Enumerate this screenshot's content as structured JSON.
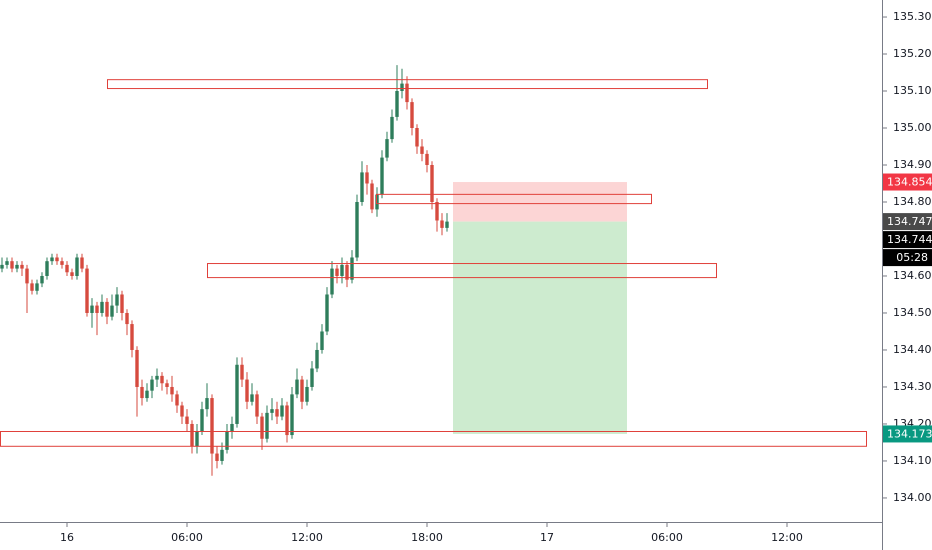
{
  "chart_data": {
    "type": "candlestick",
    "up_color": "#2e7d5b",
    "down_color": "#d64a3e",
    "xlim": [
      -3.35,
      40.75
    ],
    "ylim": [
      133.935,
      135.346
    ],
    "xticks": [
      {
        "value": 0,
        "label": "16"
      },
      {
        "value": 6,
        "label": "06:00"
      },
      {
        "value": 12,
        "label": "12:00"
      },
      {
        "value": 18,
        "label": "18:00"
      },
      {
        "value": 24,
        "label": "17"
      },
      {
        "value": 30,
        "label": "06:00"
      },
      {
        "value": 36,
        "label": "12:00"
      }
    ],
    "yticks": [
      {
        "value": 135.3,
        "label": "135.300"
      },
      {
        "value": 135.2,
        "label": "135.200"
      },
      {
        "value": 135.1,
        "label": "135.100"
      },
      {
        "value": 135.0,
        "label": "135.000"
      },
      {
        "value": 134.9,
        "label": "134.900"
      },
      {
        "value": 134.8,
        "label": "134.800"
      },
      {
        "value": 134.7,
        "label": "134.700"
      },
      {
        "value": 134.6,
        "label": "134.600"
      },
      {
        "value": 134.5,
        "label": "134.500"
      },
      {
        "value": 134.4,
        "label": "134.400"
      },
      {
        "value": 134.3,
        "label": "134.300"
      },
      {
        "value": 134.2,
        "label": "134.200"
      },
      {
        "value": 134.1,
        "label": "134.100"
      },
      {
        "value": 134.0,
        "label": "134.000"
      }
    ],
    "x": [
      -3.25,
      -3,
      -2.75,
      -2.5,
      -2.25,
      -2,
      -1.75,
      -1.5,
      -1.25,
      -1,
      -0.75,
      -0.5,
      -0.25,
      0,
      0.25,
      0.5,
      0.75,
      1,
      1.25,
      1.5,
      1.75,
      2,
      2.25,
      2.5,
      2.75,
      3,
      3.25,
      3.5,
      3.75,
      4,
      4.25,
      4.5,
      4.75,
      5,
      5.25,
      5.5,
      5.75,
      6,
      6.25,
      6.5,
      6.75,
      7,
      7.25,
      7.5,
      7.75,
      8,
      8.25,
      8.5,
      8.75,
      9,
      9.25,
      9.5,
      9.75,
      10,
      10.25,
      10.5,
      10.75,
      11,
      11.25,
      11.5,
      11.75,
      12,
      12.25,
      12.5,
      12.75,
      13,
      13.25,
      13.5,
      13.75,
      14,
      14.25,
      14.5,
      14.75,
      15,
      15.25,
      15.5,
      15.75,
      16,
      16.25,
      16.5,
      16.75,
      17,
      17.25,
      17.5,
      17.75,
      18,
      18.25,
      18.5,
      18.75,
      19
    ],
    "ohlc": [
      [
        134.62,
        134.65,
        134.61,
        134.63
      ],
      [
        134.63,
        134.65,
        134.62,
        134.64
      ],
      [
        134.64,
        134.65,
        134.61,
        134.62
      ],
      [
        134.62,
        134.64,
        134.61,
        134.63
      ],
      [
        134.63,
        134.64,
        134.6,
        134.62
      ],
      [
        134.62,
        134.63,
        134.5,
        134.58
      ],
      [
        134.58,
        134.59,
        134.55,
        134.56
      ],
      [
        134.56,
        134.59,
        134.55,
        134.58
      ],
      [
        134.58,
        134.61,
        134.57,
        134.6
      ],
      [
        134.6,
        134.65,
        134.59,
        134.64
      ],
      [
        134.64,
        134.66,
        134.63,
        134.65
      ],
      [
        134.65,
        134.66,
        134.63,
        134.64
      ],
      [
        134.64,
        134.65,
        134.62,
        134.63
      ],
      [
        134.63,
        134.64,
        134.6,
        134.61
      ],
      [
        134.61,
        134.62,
        134.59,
        134.6
      ],
      [
        134.6,
        134.66,
        134.59,
        134.65
      ],
      [
        134.65,
        134.66,
        134.61,
        134.62
      ],
      [
        134.62,
        134.63,
        134.49,
        134.5
      ],
      [
        134.5,
        134.54,
        134.46,
        134.52
      ],
      [
        134.52,
        134.53,
        134.44,
        134.5
      ],
      [
        134.5,
        134.55,
        134.49,
        134.53
      ],
      [
        134.53,
        134.54,
        134.47,
        134.49
      ],
      [
        134.49,
        134.55,
        134.48,
        134.52
      ],
      [
        134.52,
        134.57,
        134.5,
        134.55
      ],
      [
        134.55,
        134.56,
        134.48,
        134.5
      ],
      [
        134.5,
        134.51,
        134.44,
        134.47
      ],
      [
        134.47,
        134.48,
        134.38,
        134.4
      ],
      [
        134.4,
        134.41,
        134.22,
        134.3
      ],
      [
        134.3,
        134.32,
        134.25,
        134.27
      ],
      [
        134.27,
        134.31,
        134.26,
        134.29
      ],
      [
        134.29,
        134.33,
        134.27,
        134.32
      ],
      [
        134.32,
        134.35,
        134.3,
        134.33
      ],
      [
        134.33,
        134.34,
        134.29,
        134.31
      ],
      [
        134.31,
        134.32,
        134.28,
        134.3
      ],
      [
        134.3,
        134.33,
        134.26,
        134.28
      ],
      [
        134.28,
        134.29,
        134.23,
        134.25
      ],
      [
        134.25,
        134.26,
        134.2,
        134.22
      ],
      [
        134.22,
        134.24,
        134.18,
        134.2
      ],
      [
        134.2,
        134.21,
        134.12,
        134.14
      ],
      [
        134.14,
        134.2,
        134.12,
        134.18
      ],
      [
        134.18,
        134.26,
        134.17,
        134.24
      ],
      [
        134.24,
        134.31,
        134.22,
        134.27
      ],
      [
        134.27,
        134.28,
        134.06,
        134.12
      ],
      [
        134.12,
        134.14,
        134.08,
        134.1
      ],
      [
        134.1,
        134.15,
        134.09,
        134.13
      ],
      [
        134.13,
        134.2,
        134.12,
        134.18
      ],
      [
        134.18,
        134.22,
        134.16,
        134.2
      ],
      [
        134.2,
        134.38,
        134.19,
        134.36
      ],
      [
        134.36,
        134.38,
        134.3,
        134.32
      ],
      [
        134.32,
        134.34,
        134.24,
        134.26
      ],
      [
        134.26,
        134.31,
        134.25,
        134.28
      ],
      [
        134.28,
        134.29,
        134.2,
        134.22
      ],
      [
        134.22,
        134.23,
        134.13,
        134.16
      ],
      [
        134.16,
        134.25,
        134.15,
        134.23
      ],
      [
        134.23,
        134.27,
        134.21,
        134.24
      ],
      [
        134.24,
        134.26,
        134.2,
        134.22
      ],
      [
        134.22,
        134.27,
        134.21,
        134.25
      ],
      [
        134.25,
        134.26,
        134.15,
        134.17
      ],
      [
        134.17,
        134.3,
        134.16,
        134.28
      ],
      [
        134.28,
        134.35,
        134.27,
        134.32
      ],
      [
        134.32,
        134.33,
        134.24,
        134.26
      ],
      [
        134.26,
        134.32,
        134.25,
        134.3
      ],
      [
        134.3,
        134.37,
        134.29,
        134.35
      ],
      [
        134.35,
        134.42,
        134.34,
        134.4
      ],
      [
        134.4,
        134.47,
        134.39,
        134.45
      ],
      [
        134.45,
        134.57,
        134.44,
        134.55
      ],
      [
        134.55,
        134.64,
        134.54,
        134.62
      ],
      [
        134.62,
        134.63,
        134.58,
        134.6
      ],
      [
        134.6,
        134.65,
        134.58,
        134.63
      ],
      [
        134.63,
        134.64,
        134.57,
        134.59
      ],
      [
        134.59,
        134.67,
        134.58,
        134.65
      ],
      [
        134.65,
        134.82,
        134.64,
        134.8
      ],
      [
        134.8,
        134.91,
        134.79,
        134.88
      ],
      [
        134.88,
        134.9,
        134.82,
        134.85
      ],
      [
        134.85,
        134.86,
        134.77,
        134.78
      ],
      [
        134.78,
        134.84,
        134.76,
        134.82
      ],
      [
        134.82,
        134.94,
        134.81,
        134.92
      ],
      [
        134.92,
        134.99,
        134.91,
        134.97
      ],
      [
        134.97,
        135.05,
        134.96,
        135.03
      ],
      [
        135.03,
        135.17,
        135.02,
        135.1
      ],
      [
        135.1,
        135.16,
        135.08,
        135.12
      ],
      [
        135.12,
        135.14,
        135.05,
        135.07
      ],
      [
        135.07,
        135.08,
        134.98,
        135.0
      ],
      [
        135.0,
        135.01,
        134.93,
        134.95
      ],
      [
        134.95,
        134.97,
        134.91,
        134.93
      ],
      [
        134.93,
        134.94,
        134.88,
        134.9
      ],
      [
        134.9,
        134.91,
        134.78,
        134.8
      ],
      [
        134.8,
        134.81,
        134.72,
        134.75
      ],
      [
        134.75,
        134.77,
        134.71,
        134.73
      ],
      [
        134.73,
        134.77,
        134.72,
        134.747
      ]
    ],
    "zone_color": "#e0403a",
    "zones": [
      {
        "x": [
          2,
          32
        ],
        "y": [
          135.108,
          135.132
        ]
      },
      {
        "x": [
          15.45,
          29.2
        ],
        "y": [
          134.797,
          134.822
        ]
      },
      {
        "x": [
          7,
          32.45
        ],
        "y": [
          134.597,
          134.635
        ]
      },
      {
        "x": [
          -3.35,
          39.95
        ],
        "y": [
          134.141,
          134.181
        ]
      }
    ],
    "position": {
      "x": [
        19.3,
        28
      ],
      "entry": 134.747,
      "stop": 134.854,
      "target": 134.173,
      "stop_color": "#fcd5d5",
      "target_color": "#cdebcf"
    },
    "price_labels": [
      {
        "value": 134.854,
        "color": "#f23645"
      },
      {
        "value": 134.747,
        "color": "#4a4a4a"
      },
      {
        "value": 134.744,
        "color": "#000000"
      },
      {
        "value": 134.173,
        "color": "#089981"
      }
    ],
    "countdown": "05:28"
  }
}
